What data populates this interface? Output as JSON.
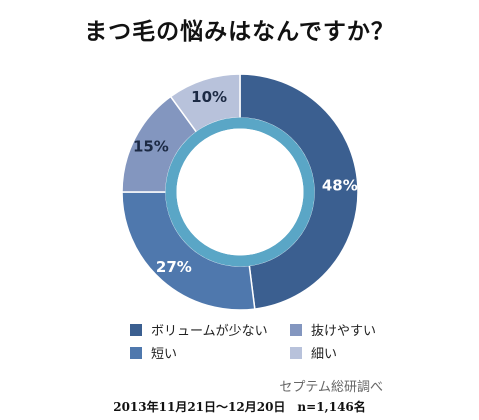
{
  "title": "まつ毛の悩みはなんですか？",
  "chart_data": {
    "type": "pie",
    "variant": "donut",
    "title": "まつ毛の悩みはなんですか？",
    "slices": [
      {
        "label": "ボリュームが少ない",
        "value": 48,
        "display": "48%",
        "color": "#3b5f90"
      },
      {
        "label": "短い",
        "value": 27,
        "display": "27%",
        "color": "#4f78ad"
      },
      {
        "label": "抜けやすい",
        "value": 15,
        "display": "15%",
        "color": "#8396bf"
      },
      {
        "label": "細い",
        "value": 10,
        "display": "10%",
        "color": "#b8c2db"
      }
    ],
    "start_angle_deg": 0,
    "direction": "clockwise",
    "inner_ring_color": "#5aa6c6",
    "legend_position": "bottom"
  },
  "legend": {
    "items": [
      {
        "label": "ボリュームが少ない",
        "color": "#3b5f90"
      },
      {
        "label": "抜けやすい",
        "color": "#8396bf"
      },
      {
        "label": "短い",
        "color": "#4f78ad"
      },
      {
        "label": "細い",
        "color": "#b8c2db"
      }
    ]
  },
  "source": "セプテム総研調べ",
  "period": "2013年11月21日〜12月20日　n=1,146名"
}
